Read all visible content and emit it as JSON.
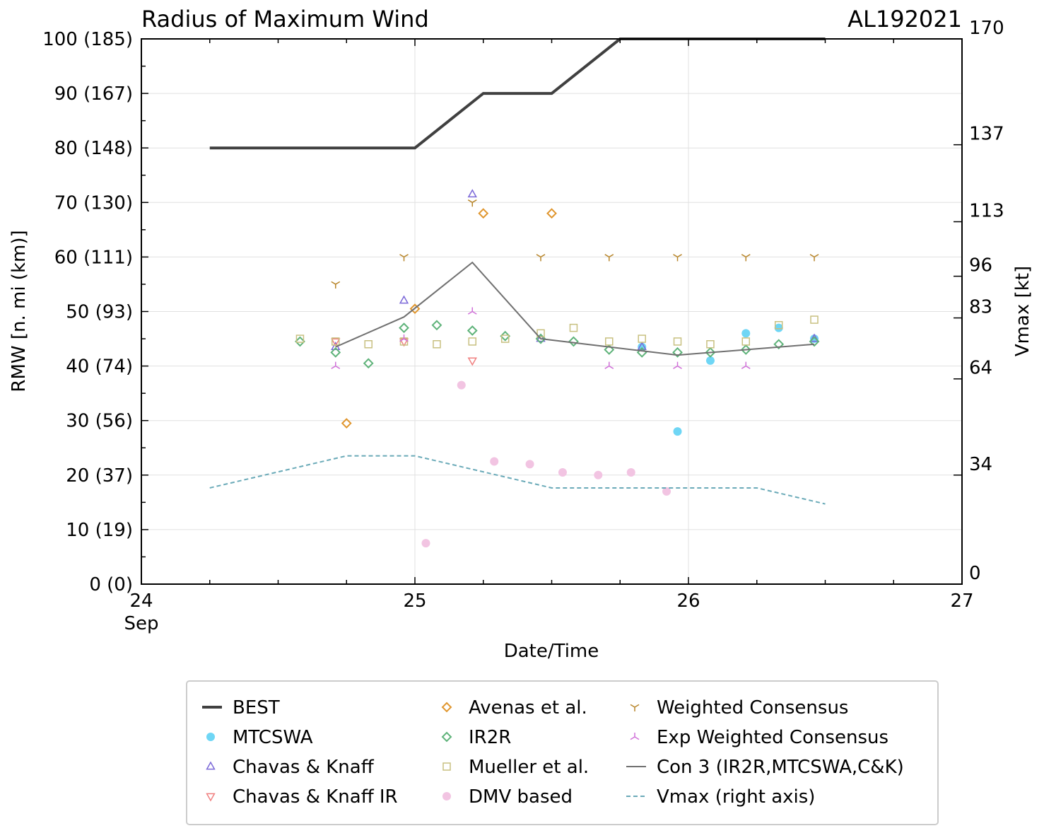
{
  "chart_data": {
    "type": "scatter",
    "title": "Radius of Maximum Wind",
    "storm_id": "AL192021",
    "xlabel": "Date/Time",
    "ylabel": "RMW [n. mi (km)]",
    "y2label": "Vmax [kt]",
    "xlim": [
      24.0,
      27.0
    ],
    "ylim": [
      0,
      100
    ],
    "x_ticks": [
      {
        "value": 24,
        "label": "24",
        "sublabel": "Sep"
      },
      {
        "value": 25,
        "label": "25",
        "sublabel": ""
      },
      {
        "value": 26,
        "label": "26",
        "sublabel": ""
      },
      {
        "value": 27,
        "label": "27",
        "sublabel": ""
      }
    ],
    "y_ticks": [
      {
        "value": 0,
        "label": "0 (0)"
      },
      {
        "value": 10,
        "label": "10 (19)"
      },
      {
        "value": 20,
        "label": "20 (37)"
      },
      {
        "value": 30,
        "label": "30 (56)"
      },
      {
        "value": 40,
        "label": "40 (74)"
      },
      {
        "value": 50,
        "label": "50 (93)"
      },
      {
        "value": 60,
        "label": "60 (111)"
      },
      {
        "value": 70,
        "label": "70 (130)"
      },
      {
        "value": 80,
        "label": "80 (148)"
      },
      {
        "value": 90,
        "label": "90 (167)"
      },
      {
        "value": 100,
        "label": "100 (185)"
      }
    ],
    "y2_ticks": [
      {
        "value": 0,
        "label": "0"
      },
      {
        "value": 34,
        "label": "34"
      },
      {
        "value": 64,
        "label": "64"
      },
      {
        "value": 83,
        "label": "83"
      },
      {
        "value": 96,
        "label": "96"
      },
      {
        "value": 113,
        "label": "113"
      },
      {
        "value": 137,
        "label": "137"
      },
      {
        "value": 170,
        "label": "170"
      }
    ],
    "y2lim": [
      0,
      170
    ],
    "series": [
      {
        "name": "BEST",
        "kind": "line",
        "color": "#404040",
        "points": [
          [
            24.25,
            80
          ],
          [
            25.0,
            80
          ],
          [
            25.25,
            90
          ],
          [
            25.5,
            90
          ],
          [
            25.75,
            100
          ],
          [
            26.5,
            100
          ]
        ]
      },
      {
        "name": "MTCSWA",
        "kind": "circle",
        "color": "#6fd6f5",
        "points": [
          [
            25.83,
            43.5
          ],
          [
            25.96,
            28
          ],
          [
            26.08,
            41
          ],
          [
            26.21,
            46
          ],
          [
            26.33,
            47
          ],
          [
            26.46,
            45
          ]
        ]
      },
      {
        "name": "Chavas & Knaff",
        "kind": "triangle-up",
        "color": "#7b68d8",
        "points": [
          [
            24.71,
            43.5
          ],
          [
            24.96,
            52
          ],
          [
            25.21,
            71.5
          ],
          [
            25.46,
            45
          ],
          [
            25.83,
            43.5
          ],
          [
            26.46,
            45
          ]
        ]
      },
      {
        "name": "Chavas & Knaff IR",
        "kind": "triangle-down",
        "color": "#f08080",
        "points": [
          [
            24.71,
            44.5
          ],
          [
            24.96,
            44.5
          ],
          [
            25.21,
            41
          ]
        ]
      },
      {
        "name": "Avenas et al.",
        "kind": "diamond",
        "color": "#e0962e",
        "points": [
          [
            24.75,
            29.5
          ],
          [
            25.0,
            50.5
          ],
          [
            25.25,
            68
          ],
          [
            25.5,
            68
          ]
        ]
      },
      {
        "name": "IR2R",
        "kind": "diamond",
        "color": "#5fb37a",
        "points": [
          [
            24.58,
            44.5
          ],
          [
            24.71,
            42.5
          ],
          [
            24.83,
            40.5
          ],
          [
            24.96,
            47
          ],
          [
            25.08,
            47.5
          ],
          [
            25.21,
            46.5
          ],
          [
            25.33,
            45.5
          ],
          [
            25.46,
            45
          ],
          [
            25.58,
            44.5
          ],
          [
            25.71,
            43
          ],
          [
            25.83,
            42.5
          ],
          [
            25.96,
            42.5
          ],
          [
            26.08,
            42.5
          ],
          [
            26.21,
            43
          ],
          [
            26.33,
            44
          ],
          [
            26.46,
            44.5
          ]
        ]
      },
      {
        "name": "Mueller et al.",
        "kind": "square",
        "color": "#c8c080",
        "points": [
          [
            24.58,
            45
          ],
          [
            24.71,
            44.5
          ],
          [
            24.83,
            44
          ],
          [
            24.96,
            44.5
          ],
          [
            25.08,
            44
          ],
          [
            25.21,
            44.5
          ],
          [
            25.33,
            45
          ],
          [
            25.46,
            46
          ],
          [
            25.58,
            47
          ],
          [
            25.71,
            44.5
          ],
          [
            25.83,
            45
          ],
          [
            25.96,
            44.5
          ],
          [
            26.08,
            44
          ],
          [
            26.21,
            44.5
          ],
          [
            26.33,
            47.5
          ],
          [
            26.46,
            48.5
          ]
        ]
      },
      {
        "name": "DMV based",
        "kind": "circle",
        "color": "#f2c4e2",
        "points": [
          [
            25.04,
            7.5
          ],
          [
            25.17,
            36.5
          ],
          [
            25.29,
            22.5
          ],
          [
            25.42,
            22
          ],
          [
            25.54,
            20.5
          ],
          [
            25.67,
            20
          ],
          [
            25.79,
            20.5
          ],
          [
            25.92,
            17
          ]
        ]
      },
      {
        "name": "Weighted Consensus",
        "kind": "tri-down",
        "color": "#b8862b",
        "points": [
          [
            24.71,
            55
          ],
          [
            24.96,
            60
          ],
          [
            25.21,
            70
          ],
          [
            25.46,
            60
          ],
          [
            25.71,
            60
          ],
          [
            25.96,
            60
          ],
          [
            26.21,
            60
          ],
          [
            26.46,
            60
          ]
        ]
      },
      {
        "name": "Exp Weighted Consensus",
        "kind": "tri-up",
        "color": "#d070d8",
        "points": [
          [
            24.71,
            40
          ],
          [
            24.96,
            45
          ],
          [
            25.21,
            50
          ],
          [
            25.71,
            40
          ],
          [
            25.96,
            40
          ],
          [
            26.21,
            40
          ]
        ]
      },
      {
        "name": "Con 3 (IR2R,MTCSWA,C&K)",
        "kind": "line",
        "color": "#707070",
        "points": [
          [
            24.71,
            43.5
          ],
          [
            24.96,
            49
          ],
          [
            25.21,
            59
          ],
          [
            25.46,
            45
          ],
          [
            25.71,
            43.5
          ],
          [
            25.96,
            42
          ],
          [
            26.21,
            43
          ],
          [
            26.46,
            44
          ]
        ]
      },
      {
        "name": "Vmax (right axis)",
        "kind": "dashed",
        "axis": "right",
        "color": "#6aaab8",
        "points": [
          [
            24.25,
            30
          ],
          [
            24.75,
            40
          ],
          [
            25.0,
            40
          ],
          [
            25.5,
            30
          ],
          [
            26.25,
            30
          ],
          [
            26.5,
            25
          ]
        ]
      }
    ],
    "legend": {
      "placement": "bottom",
      "columns": [
        [
          "BEST",
          "MTCSWA",
          "Chavas & Knaff",
          "Chavas & Knaff IR"
        ],
        [
          "Avenas et al.",
          "IR2R",
          "Mueller et al.",
          "DMV based"
        ],
        [
          "Weighted Consensus",
          "Exp Weighted Consensus",
          "Con 3 (IR2R,MTCSWA,C&K)",
          "Vmax (right axis)"
        ]
      ]
    },
    "grid": true
  }
}
